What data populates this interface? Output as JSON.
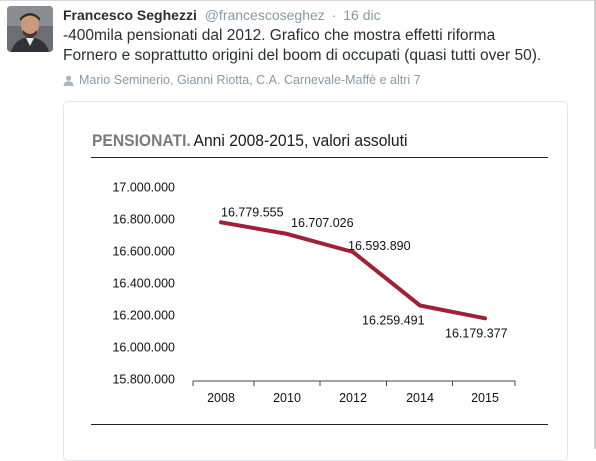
{
  "tweet": {
    "author_name": "Francesco Seghezzi",
    "author_handle": "@francescoseghez",
    "separator": "·",
    "date": "16 dic",
    "text_line1": "-400mila pensionati dal 2012. Grafico che mostra effetti riforma",
    "text_line2": "Fornero e soprattutto origini del boom di occupati (quasi tutti over 50).",
    "retweeted_by": "Mario Seminerio, Gianni Riotta, C.A. Carnevale-Maffè e altri 7",
    "retweet_icon": "person-icon"
  },
  "colors": {
    "line": "#a0203a",
    "text": "#292f33",
    "muted": "#8899a6"
  },
  "chart_data": {
    "type": "line",
    "title": "PENSIONATI.",
    "subtitle": "Anni 2008-2015, valori assoluti",
    "x": [
      2008,
      2010,
      2012,
      2014,
      2015
    ],
    "x_tick_labels": [
      "2008",
      "2010",
      "2012",
      "2014",
      "2015"
    ],
    "values": [
      16779555,
      16707026,
      16593890,
      16259491,
      16179377
    ],
    "data_labels": [
      "16.779.555",
      "16.707.026",
      "16.593.890",
      "16.259.491",
      "16.179.377"
    ],
    "ylim": [
      15800000,
      17000000
    ],
    "y_ticks": [
      17000000,
      16800000,
      16600000,
      16400000,
      16200000,
      16000000,
      15800000
    ],
    "y_tick_labels": [
      "17.000.000",
      "16.800.000",
      "16.600.000",
      "16.400.000",
      "16.200.000",
      "16.000.000",
      "15.800.000"
    ],
    "grid": false,
    "legend": "none"
  }
}
